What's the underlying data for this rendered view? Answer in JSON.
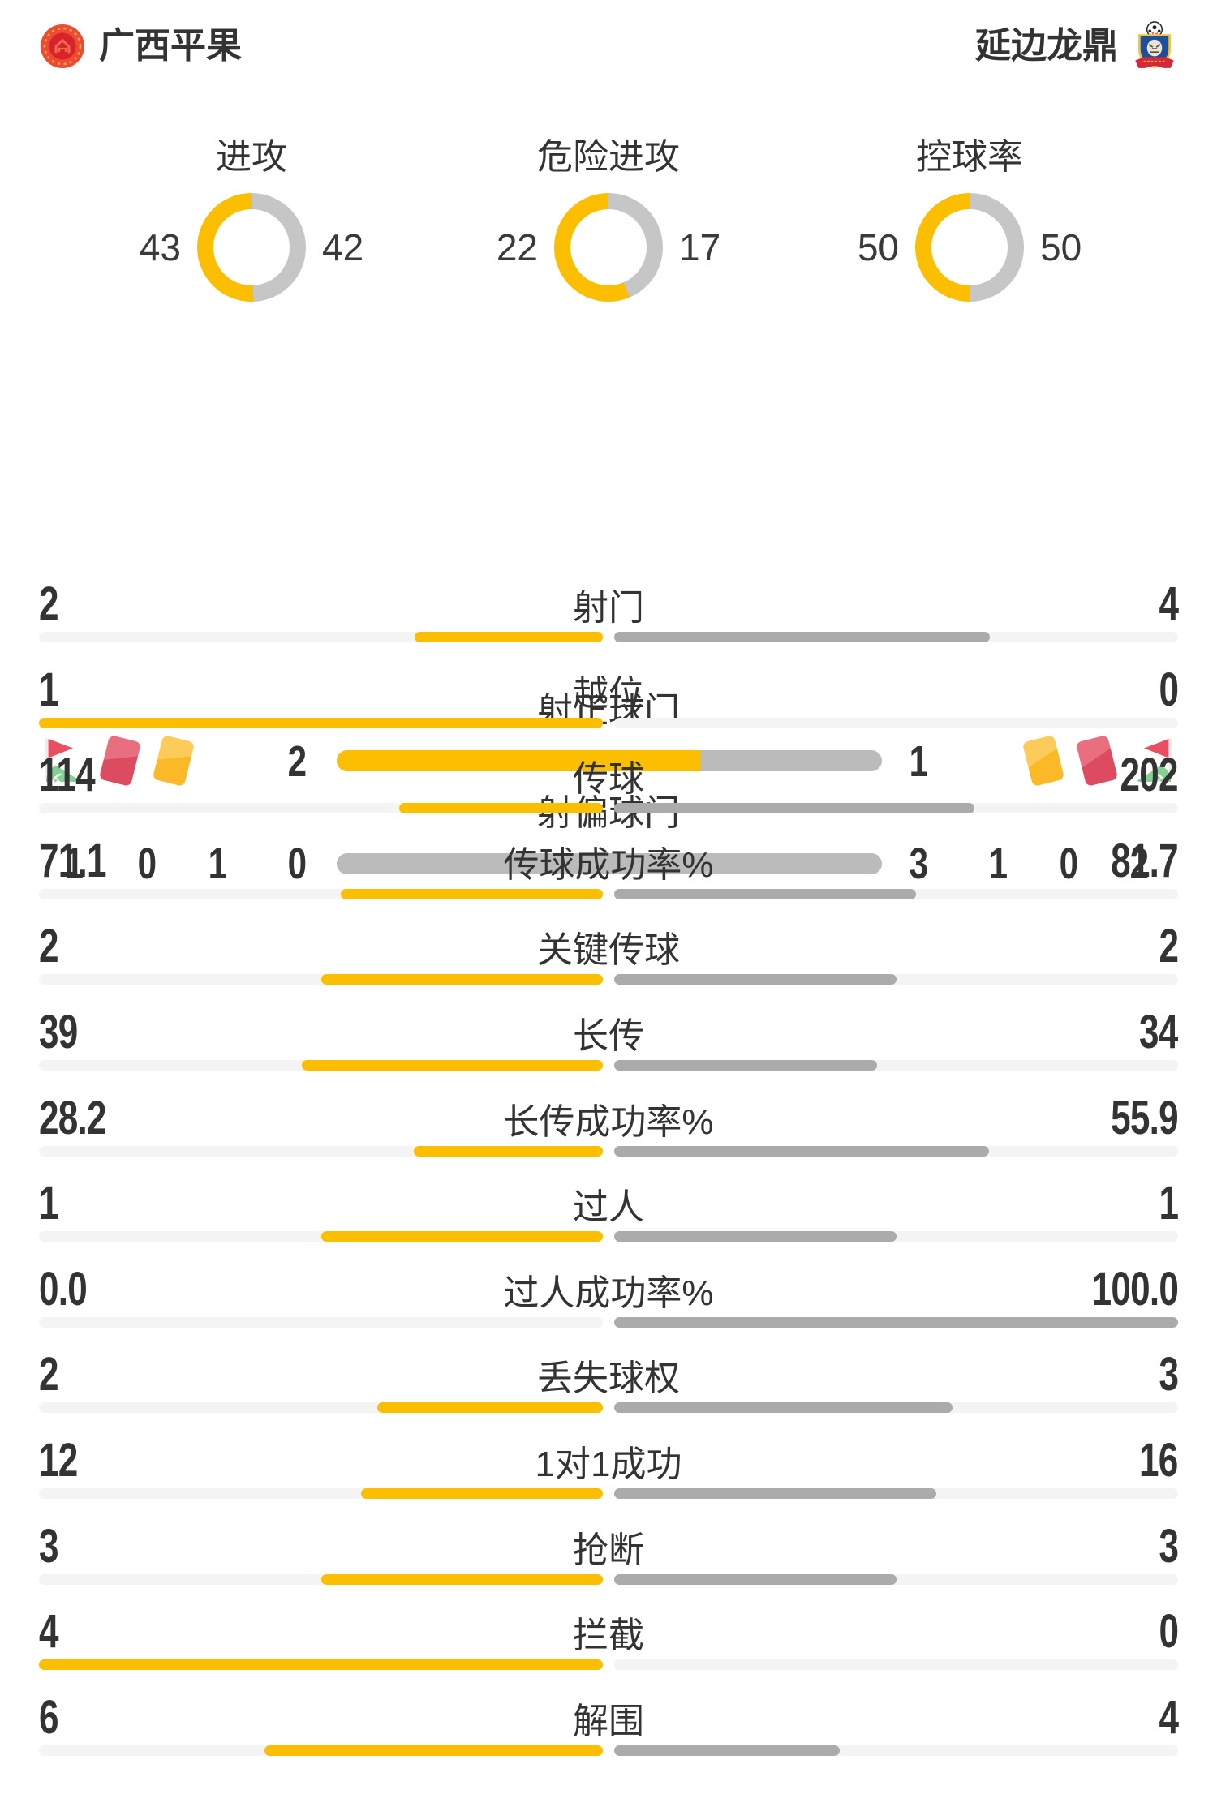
{
  "header": {
    "home": {
      "name": "广西平果"
    },
    "away": {
      "name": "延边龙鼎"
    }
  },
  "colors": {
    "accent_yellow": "#fcbe00",
    "stat_fill_gray": "#ababab",
    "donut_gray": "#c6c6c6",
    "center_bar_gray": "#bbbbbb",
    "bar_track": "#f4f4f4",
    "text": "#333333",
    "card_red": "#dd4b60",
    "card_yellow": "#fbb927",
    "flag_red": "#e94f5f",
    "flag_green": "#85d194"
  },
  "donuts": [
    {
      "label": "进攻",
      "home": 43,
      "away": 42
    },
    {
      "label": "危险进攻",
      "home": 22,
      "away": 17
    },
    {
      "label": "控球率",
      "home": 50,
      "away": 50
    }
  ],
  "shots": {
    "on_target": {
      "label": "射正球门",
      "home": 2,
      "away": 1
    },
    "off_target": {
      "label": "射偏球门",
      "home": 0,
      "away": 3
    },
    "home_cards": {
      "corner": 1,
      "red": 0,
      "yellow": 1
    },
    "away_cards": {
      "yellow": 1,
      "red": 0,
      "corner": 2
    }
  },
  "stats": [
    {
      "label": "射门",
      "home": "2",
      "away": "4"
    },
    {
      "label": "越位",
      "home": "1",
      "away": "0"
    },
    {
      "label": "传球",
      "home": "114",
      "away": "202"
    },
    {
      "label": "传球成功率%",
      "home": "71.1",
      "away": "81.7"
    },
    {
      "label": "关键传球",
      "home": "2",
      "away": "2"
    },
    {
      "label": "长传",
      "home": "39",
      "away": "34"
    },
    {
      "label": "长传成功率%",
      "home": "28.2",
      "away": "55.9"
    },
    {
      "label": "过人",
      "home": "1",
      "away": "1"
    },
    {
      "label": "过人成功率%",
      "home": "0.0",
      "away": "100.0"
    },
    {
      "label": "丢失球权",
      "home": "2",
      "away": "3"
    },
    {
      "label": "1对1成功",
      "home": "12",
      "away": "16"
    },
    {
      "label": "抢断",
      "home": "3",
      "away": "3"
    },
    {
      "label": "拦截",
      "home": "4",
      "away": "0"
    },
    {
      "label": "解围",
      "home": "6",
      "away": "4"
    }
  ]
}
